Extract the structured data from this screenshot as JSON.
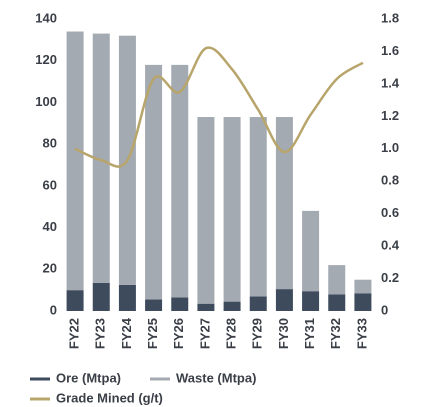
{
  "chart_data": {
    "type": "bar",
    "categories": [
      "FY22",
      "FY23",
      "FY24",
      "FY25",
      "FY26",
      "FY27",
      "FY28",
      "FY29",
      "FY30",
      "FY31",
      "FY32",
      "FY33"
    ],
    "stacked": true,
    "series": [
      {
        "name": "Ore (Mtpa)",
        "color": "#3e4b5d",
        "type": "bar",
        "values": [
          10,
          13.5,
          12.5,
          5.5,
          6.5,
          3.5,
          4.5,
          7,
          10.5,
          9.5,
          8,
          8.5
        ]
      },
      {
        "name": "Waste (Mtpa)",
        "color": "#a4aab2",
        "type": "bar",
        "values": [
          124,
          119.5,
          119.5,
          112.5,
          111.5,
          89.5,
          88.5,
          86,
          82.5,
          38.5,
          14,
          6.5
        ]
      },
      {
        "name": "Grade Mined (g/t)",
        "color": "#b8a56b",
        "type": "line",
        "axis": "y2",
        "values": [
          1.0,
          0.93,
          0.93,
          1.43,
          1.35,
          1.62,
          1.49,
          1.24,
          0.98,
          1.21,
          1.43,
          1.53
        ]
      }
    ],
    "ylim": [
      0,
      140
    ],
    "yticks": [
      0,
      20,
      40,
      60,
      80,
      100,
      120,
      140
    ],
    "y2lim": [
      0,
      1.8
    ],
    "y2ticks": [
      0,
      0.2,
      0.4,
      0.6,
      0.8,
      {
        "value": 1,
        "label": "1.0"
      },
      1.2,
      1.4,
      1.6,
      1.8
    ],
    "legend": "bottom-left"
  }
}
